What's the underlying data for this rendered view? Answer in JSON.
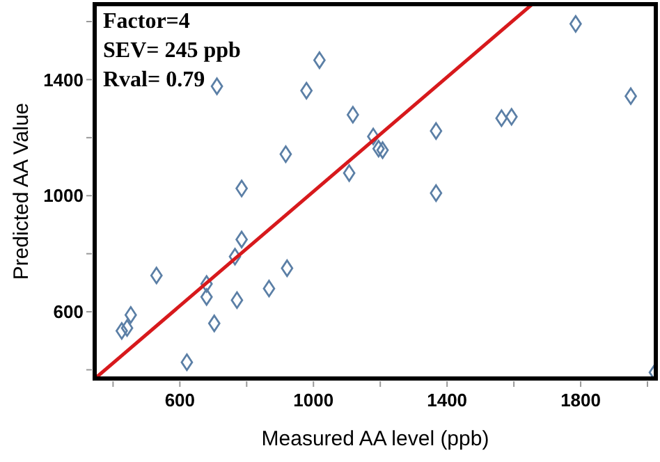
{
  "chart_data": {
    "type": "scatter",
    "xlabel": "Measured AA level (ppb)",
    "ylabel": "Predicted AA Value",
    "annotations": [
      "Factor=4",
      "SEV= 245 ppb",
      "Rval= 0.79"
    ],
    "xlim": [
      345,
      2025
    ],
    "ylim": [
      370,
      1660
    ],
    "xticks": [
      {
        "value": 400,
        "label": null
      },
      600,
      {
        "value": 800,
        "label": null
      },
      1000,
      {
        "value": 1200,
        "label": null
      },
      1400,
      {
        "value": 1600,
        "label": null
      },
      1800,
      {
        "value": 2000,
        "label": null
      }
    ],
    "yticks": [
      {
        "value": 400,
        "label": null
      },
      600,
      {
        "value": 800,
        "label": null
      },
      1000,
      {
        "value": 1200,
        "label": null
      },
      1400,
      {
        "value": 1600,
        "label": null
      }
    ],
    "grid": false,
    "marker": "diamond",
    "series": [
      {
        "color": "#5b7fa6",
        "x": [
          426,
          442,
          453,
          530,
          621,
          680,
          680,
          703,
          765,
          785,
          771,
          867,
          921,
          785,
          711,
          917,
          979,
          1018,
          1118,
          1107,
          1179,
          1195,
          1207,
          1367,
          1367,
          1563,
          1593,
          1785,
          1950,
          2022
        ],
        "values": [
          534,
          544,
          589,
          725,
          426,
          696,
          651,
          560,
          790,
          849,
          640,
          680,
          750,
          1025,
          1377,
          1143,
          1362,
          1467,
          1279,
          1078,
          1204,
          1162,
          1157,
          1223,
          1009,
          1267,
          1272,
          1592,
          1343,
          391
        ]
      },
      {
        "type": "line",
        "color": "#d7191c",
        "x": [
          346,
          1655
        ],
        "values": [
          370,
          1660
        ],
        "marker": "none",
        "line_style": "solid"
      }
    ]
  }
}
